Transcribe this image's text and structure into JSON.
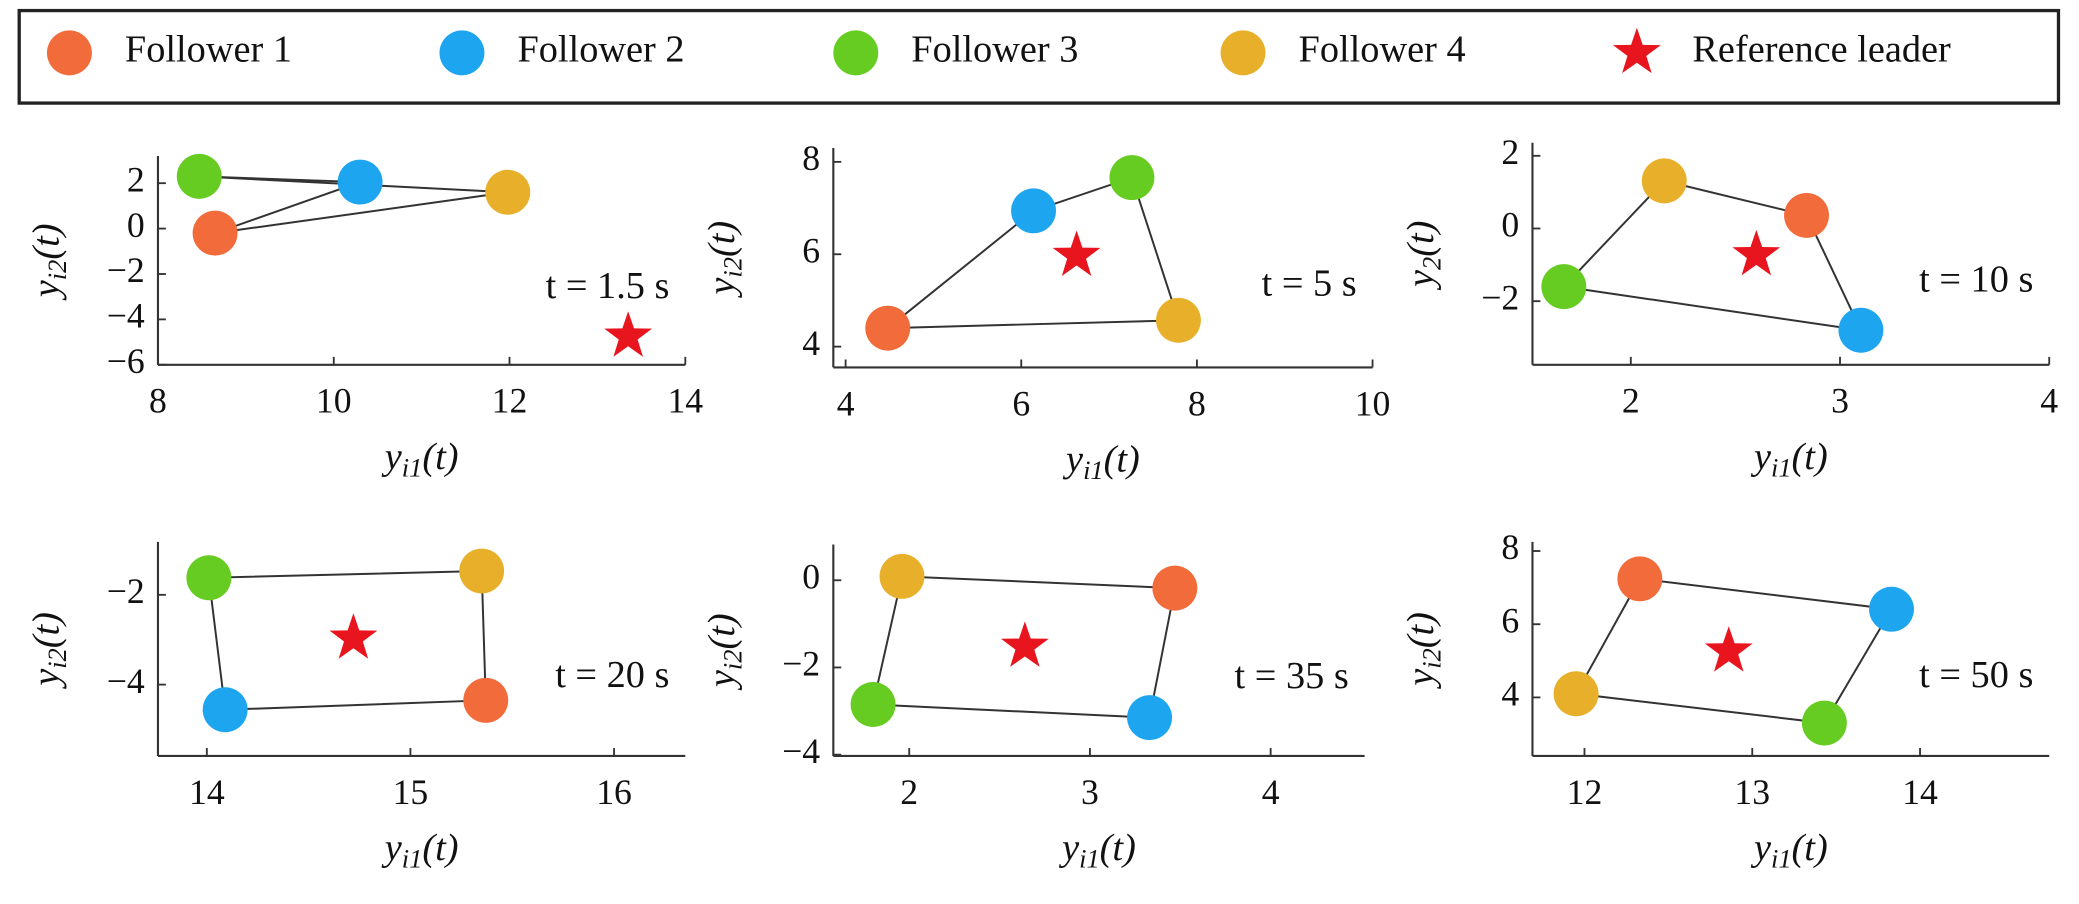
{
  "legend": [
    {
      "name": "Follower 1",
      "color": "#f26b3a",
      "marker": "circle"
    },
    {
      "name": "Follower 2",
      "color": "#1ea5f0",
      "marker": "circle"
    },
    {
      "name": "Follower 3",
      "color": "#66cc22",
      "marker": "circle"
    },
    {
      "name": "Follower 4",
      "color": "#e8b02a",
      "marker": "circle"
    },
    {
      "name": "Reference leader",
      "color": "#e8141e",
      "marker": "star"
    }
  ],
  "chart_data": [
    {
      "type": "scatter",
      "annotation": "t = 1.5 s",
      "xlabel": [
        "y",
        "i1",
        "(t)"
      ],
      "ylabel": [
        "y",
        "i2",
        "(t)"
      ],
      "xlim": [
        8,
        14
      ],
      "ylim": [
        -6,
        3.2
      ],
      "xticks": [
        8,
        10,
        12,
        14
      ],
      "yticks": [
        {
          "value": -6,
          "label": "−6"
        },
        {
          "value": -4,
          "label": "−4"
        },
        {
          "value": -2,
          "label": "−2"
        },
        0,
        2
      ],
      "series": [
        {
          "x": [
            8.65
          ],
          "y": [
            -0.2
          ]
        },
        {
          "x": [
            10.3
          ],
          "y": [
            2.05
          ]
        },
        {
          "x": [
            8.47
          ],
          "y": [
            2.3
          ]
        },
        {
          "x": [
            11.98
          ],
          "y": [
            1.6
          ]
        },
        {
          "x": [
            13.35
          ],
          "y": [
            -4.75
          ]
        }
      ]
    },
    {
      "type": "scatter",
      "annotation": "t = 5 s",
      "xlabel": [
        "y",
        "i1",
        "(t)"
      ],
      "ylabel": [
        "y",
        "i2",
        "(t)"
      ],
      "xlim": [
        3.86,
        10
      ],
      "ylim": [
        3.55,
        8.3
      ],
      "xticks": [
        4,
        6,
        8,
        10
      ],
      "yticks": [
        4,
        6,
        8
      ],
      "series": [
        {
          "x": [
            4.48
          ],
          "y": [
            4.4
          ]
        },
        {
          "x": [
            6.14
          ],
          "y": [
            6.94
          ]
        },
        {
          "x": [
            7.26
          ],
          "y": [
            7.66
          ]
        },
        {
          "x": [
            7.79
          ],
          "y": [
            4.57
          ]
        },
        {
          "x": [
            6.63
          ],
          "y": [
            5.97
          ]
        }
      ]
    },
    {
      "type": "scatter",
      "annotation": "t = 10 s",
      "xlabel": [
        "y",
        "i1",
        "(t)"
      ],
      "ylabel": [
        "y",
        "2",
        "(t)"
      ],
      "xlim": [
        1.53,
        4
      ],
      "ylim": [
        -3.75,
        2.36
      ],
      "xticks": [
        2,
        3,
        4
      ],
      "yticks": [
        {
          "value": -2,
          "label": "−2"
        },
        0,
        2
      ],
      "series": [
        {
          "x": [
            2.84
          ],
          "y": [
            0.36
          ]
        },
        {
          "x": [
            3.1
          ],
          "y": [
            -2.8
          ]
        },
        {
          "x": [
            1.68
          ],
          "y": [
            -1.6
          ]
        },
        {
          "x": [
            2.16
          ],
          "y": [
            1.31
          ]
        },
        {
          "x": [
            2.6
          ],
          "y": [
            -0.73
          ]
        }
      ]
    },
    {
      "type": "scatter",
      "annotation": "t = 20 s",
      "xlabel": [
        "y",
        "i1",
        "(t)"
      ],
      "ylabel": [
        "y",
        "i2",
        "(t)"
      ],
      "xlim": [
        13.76,
        16.35
      ],
      "ylim": [
        -5.59,
        -0.82
      ],
      "xticks": [
        14,
        15,
        16
      ],
      "yticks": [
        {
          "value": -4,
          "label": "−4"
        },
        {
          "value": -2,
          "label": "−2"
        }
      ],
      "series": [
        {
          "x": [
            15.37
          ],
          "y": [
            -4.35
          ]
        },
        {
          "x": [
            14.09
          ],
          "y": [
            -4.56
          ]
        },
        {
          "x": [
            14.01
          ],
          "y": [
            -1.62
          ]
        },
        {
          "x": [
            15.35
          ],
          "y": [
            -1.47
          ]
        },
        {
          "x": [
            14.72
          ],
          "y": [
            -2.97
          ]
        }
      ]
    },
    {
      "type": "scatter",
      "annotation": "t = 35 s",
      "xlabel": [
        "y",
        "i1",
        "(t)"
      ],
      "ylabel": [
        "y",
        "i2",
        "(t)"
      ],
      "xlim": [
        1.58,
        4.52
      ],
      "ylim": [
        -4.03,
        0.82
      ],
      "xticks": [
        2,
        3,
        4
      ],
      "yticks": [
        {
          "value": -4,
          "label": "−4"
        },
        {
          "value": -2,
          "label": "−2"
        },
        0
      ],
      "series": [
        {
          "x": [
            3.47
          ],
          "y": [
            -0.18
          ]
        },
        {
          "x": [
            3.33
          ],
          "y": [
            -3.15
          ]
        },
        {
          "x": [
            1.8
          ],
          "y": [
            -2.85
          ]
        },
        {
          "x": [
            1.96
          ],
          "y": [
            0.09
          ]
        },
        {
          "x": [
            2.64
          ],
          "y": [
            -1.52
          ]
        }
      ]
    },
    {
      "type": "scatter",
      "annotation": "t = 50 s",
      "xlabel": [
        "y",
        "i1",
        "(t)"
      ],
      "ylabel": [
        "y",
        "i2",
        "(t)"
      ],
      "xlim": [
        11.69,
        14.77
      ],
      "ylim": [
        2.4,
        8.25
      ],
      "xticks": [
        12,
        13,
        14
      ],
      "yticks": [
        4,
        6,
        8
      ],
      "series": [
        {
          "x": [
            12.33
          ],
          "y": [
            7.24
          ]
        },
        {
          "x": [
            13.83
          ],
          "y": [
            6.41
          ]
        },
        {
          "x": [
            13.43
          ],
          "y": [
            3.3
          ]
        },
        {
          "x": [
            11.95
          ],
          "y": [
            4.1
          ]
        },
        {
          "x": [
            12.86
          ],
          "y": [
            5.26
          ]
        }
      ]
    }
  ]
}
